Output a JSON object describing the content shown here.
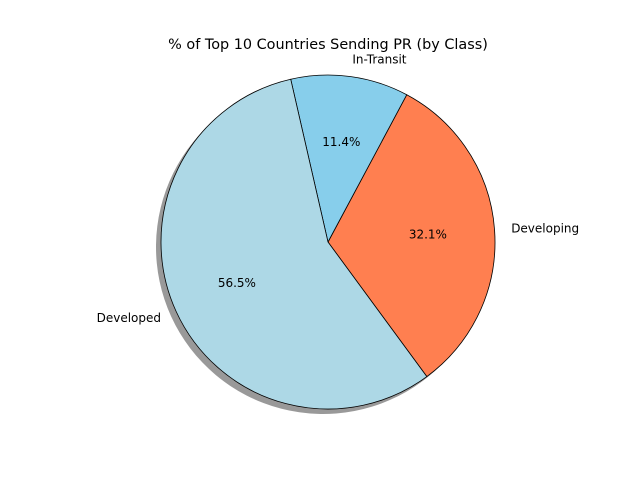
{
  "chart_data": {
    "type": "pie",
    "title": "% of Top 10 Countries Sending PR (by Class)",
    "categories": [
      "Developing",
      "In-Transit",
      "Developed"
    ],
    "values": [
      32.1,
      11.4,
      56.5
    ],
    "autopct_labels": [
      "32.1%",
      "11.4%",
      "56.5%"
    ],
    "colors": [
      "#ff7f50",
      "#87ceeb",
      "#add8e6"
    ],
    "start_angle_deg": 306.3,
    "direction": "counterclockwise",
    "shadow": true,
    "edge_color": "#000000",
    "legend": "none"
  }
}
